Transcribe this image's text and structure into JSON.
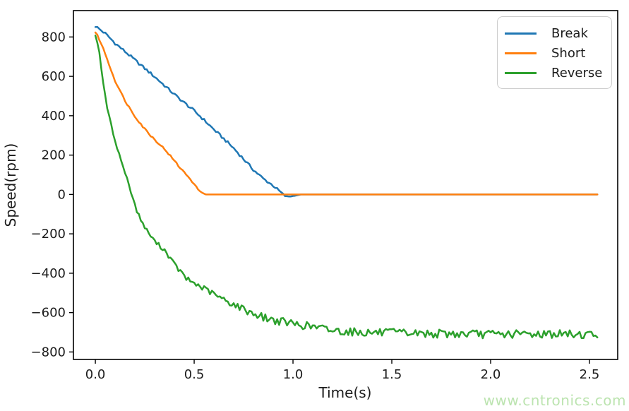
{
  "watermark": {
    "text": "www.cntronics.com",
    "color": "#bce4b0"
  },
  "chart_data": {
    "type": "line",
    "title": "",
    "xlabel": "Time(s)",
    "ylabel": "Speed(rpm)",
    "xlim": [
      -0.111,
      2.643
    ],
    "ylim": [
      -838,
      934
    ],
    "grid": false,
    "background": "#ffffff",
    "axis_color": "#000000",
    "text_color": "#1c1c1c",
    "legend": {
      "position": "upper right",
      "border_color": "#cccccc",
      "background": "#ffffff"
    },
    "xticks": {
      "values": [
        0,
        0.5,
        1.0,
        1.5,
        2.0,
        2.5
      ],
      "labels": [
        "0.0",
        "0.5",
        "1.0",
        "1.5",
        "2.0",
        "2.5"
      ]
    },
    "yticks": {
      "values": [
        800,
        600,
        400,
        200,
        0,
        -200,
        -400,
        -600,
        -800
      ],
      "labels": [
        "800",
        "600",
        "400",
        "200",
        "0",
        "−200",
        "−400",
        "−600",
        "−800"
      ]
    },
    "series": [
      {
        "name": "Break",
        "color": "#1f77b4",
        "points": [
          [
            0,
            855
          ],
          [
            0.05,
            818
          ],
          [
            0.1,
            768
          ],
          [
            0.15,
            726
          ],
          [
            0.2,
            683
          ],
          [
            0.25,
            640
          ],
          [
            0.3,
            598
          ],
          [
            0.35,
            553
          ],
          [
            0.4,
            508
          ],
          [
            0.45,
            466
          ],
          [
            0.5,
            425
          ],
          [
            0.55,
            378
          ],
          [
            0.6,
            330
          ],
          [
            0.65,
            283
          ],
          [
            0.7,
            235
          ],
          [
            0.75,
            180
          ],
          [
            0.8,
            125
          ],
          [
            0.85,
            80
          ],
          [
            0.9,
            45
          ],
          [
            0.94,
            10
          ],
          [
            0.965,
            -12
          ],
          [
            1.0,
            -8
          ],
          [
            1.04,
            0
          ],
          [
            2.54,
            0
          ]
        ],
        "noise_amp": [
          [
            0,
            7
          ],
          [
            0.9,
            7
          ],
          [
            0.96,
            4
          ],
          [
            1.02,
            0
          ],
          [
            2.54,
            0
          ]
        ]
      },
      {
        "name": "Short",
        "color": "#ff7f0e",
        "points": [
          [
            0,
            825
          ],
          [
            0.02,
            788
          ],
          [
            0.04,
            740
          ],
          [
            0.06,
            688
          ],
          [
            0.08,
            630
          ],
          [
            0.1,
            578
          ],
          [
            0.13,
            515
          ],
          [
            0.16,
            460
          ],
          [
            0.2,
            398
          ],
          [
            0.24,
            345
          ],
          [
            0.28,
            299
          ],
          [
            0.32,
            260
          ],
          [
            0.36,
            220
          ],
          [
            0.4,
            170
          ],
          [
            0.44,
            122
          ],
          [
            0.48,
            80
          ],
          [
            0.51,
            38
          ],
          [
            0.535,
            10
          ],
          [
            0.56,
            0
          ],
          [
            2.54,
            0
          ]
        ],
        "noise_amp": [
          [
            0,
            5
          ],
          [
            0.5,
            5
          ],
          [
            0.55,
            0
          ],
          [
            2.54,
            0
          ]
        ]
      },
      {
        "name": "Reverse",
        "color": "#2ca02c",
        "points": [
          [
            0,
            812
          ],
          [
            0.02,
            725
          ],
          [
            0.04,
            560
          ],
          [
            0.06,
            440
          ],
          [
            0.08,
            352
          ],
          [
            0.1,
            272
          ],
          [
            0.12,
            205
          ],
          [
            0.15,
            112
          ],
          [
            0.18,
            15
          ],
          [
            0.21,
            -85
          ],
          [
            0.25,
            -168
          ],
          [
            0.3,
            -238
          ],
          [
            0.35,
            -282
          ],
          [
            0.4,
            -355
          ],
          [
            0.46,
            -428
          ],
          [
            0.52,
            -462
          ],
          [
            0.58,
            -495
          ],
          [
            0.64,
            -530
          ],
          [
            0.7,
            -558
          ],
          [
            0.77,
            -592
          ],
          [
            0.84,
            -620
          ],
          [
            0.9,
            -638
          ],
          [
            1.0,
            -656
          ],
          [
            1.1,
            -672
          ],
          [
            1.2,
            -690
          ],
          [
            1.35,
            -700
          ],
          [
            1.5,
            -703
          ],
          [
            1.7,
            -707
          ],
          [
            2.0,
            -710
          ],
          [
            2.3,
            -708
          ],
          [
            2.54,
            -712
          ]
        ],
        "noise_amp": [
          [
            0,
            5
          ],
          [
            0.2,
            8
          ],
          [
            0.5,
            14
          ],
          [
            0.8,
            19
          ],
          [
            1.2,
            21
          ],
          [
            2.54,
            21
          ]
        ]
      }
    ]
  }
}
